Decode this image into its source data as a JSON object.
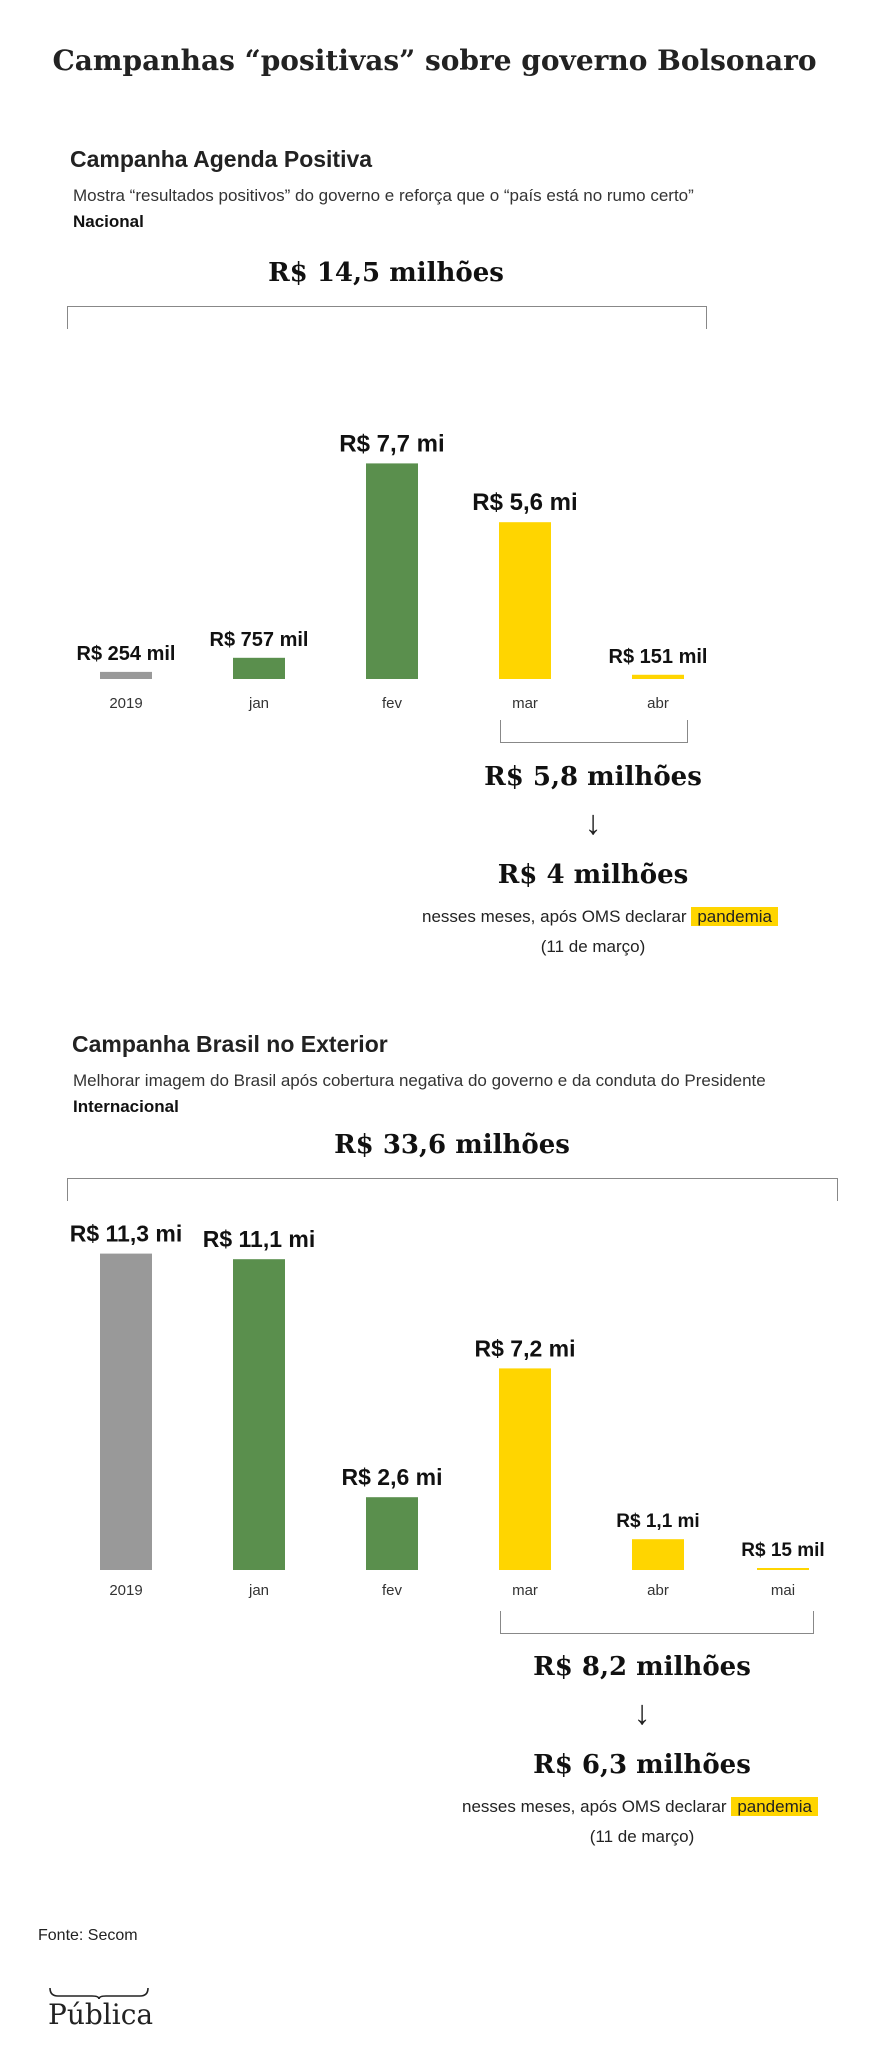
{
  "page_title": "Campanhas “positivas” sobre governo Bolsonaro",
  "colors": {
    "gray": "#999999",
    "green": "#5a8f4d",
    "yellow": "#ffd500"
  },
  "sections": [
    {
      "title": "Campanha Agenda Positiva",
      "description": "Mostra “resultados positivos” do governo e reforça que o “país está no rumo certo”",
      "scope": "Nacional",
      "total_label": "R$ 14,5 milhões",
      "subtotal_label": "R$ 5,8 milhões",
      "after_label": "R$ 4 milhões",
      "note_before": "nesses meses, após OMS declarar",
      "note_highlight": "pandemia",
      "note_date": "(11 de março)"
    },
    {
      "title": "Campanha Brasil no Exterior",
      "description": "Melhorar imagem do Brasil após cobertura negativa do governo e da conduta do Presidente",
      "scope": "Internacional",
      "total_label": "R$ 33,6 milhões",
      "subtotal_label": "R$ 8,2 milhões",
      "after_label": "R$ 6,3 milhões",
      "note_before": "nesses meses, após OMS declarar",
      "note_highlight": "pandemia",
      "note_date": "(11 de março)"
    }
  ],
  "chart_data": [
    {
      "type": "bar",
      "title": "Campanha Agenda Positiva",
      "categories": [
        "2019",
        "jan",
        "fev",
        "mar",
        "abr"
      ],
      "values": [
        0.254,
        0.757,
        7.7,
        5.6,
        0.151
      ],
      "unit": "R$ milhões",
      "labels": [
        "R$ 254 mil",
        "R$ 757 mil",
        "R$ 7,7 mi",
        "R$ 5,6 mi",
        "R$ 151 mil"
      ],
      "colors": [
        "gray",
        "green",
        "green",
        "yellow",
        "yellow"
      ],
      "total": 14.5,
      "pandemic_subtotal": 5.8,
      "after_pandemic": 4
    },
    {
      "type": "bar",
      "title": "Campanha Brasil no Exterior",
      "categories": [
        "2019",
        "jan",
        "fev",
        "mar",
        "abr",
        "mai"
      ],
      "values": [
        11.3,
        11.1,
        2.6,
        7.2,
        1.1,
        0.015
      ],
      "unit": "R$ milhões",
      "labels": [
        "R$ 11,3 mi",
        "R$ 11,1 mi",
        "R$ 2,6 mi",
        "R$ 7,2 mi",
        "R$ 1,1 mi",
        "R$ 15 mil"
      ],
      "colors": [
        "gray",
        "green",
        "green",
        "yellow",
        "yellow",
        "yellow"
      ],
      "total": 33.6,
      "pandemic_subtotal": 8.2,
      "after_pandemic": 6.3
    }
  ],
  "footer": {
    "source": "Fonte: Secom",
    "logo_text": "Pública"
  }
}
